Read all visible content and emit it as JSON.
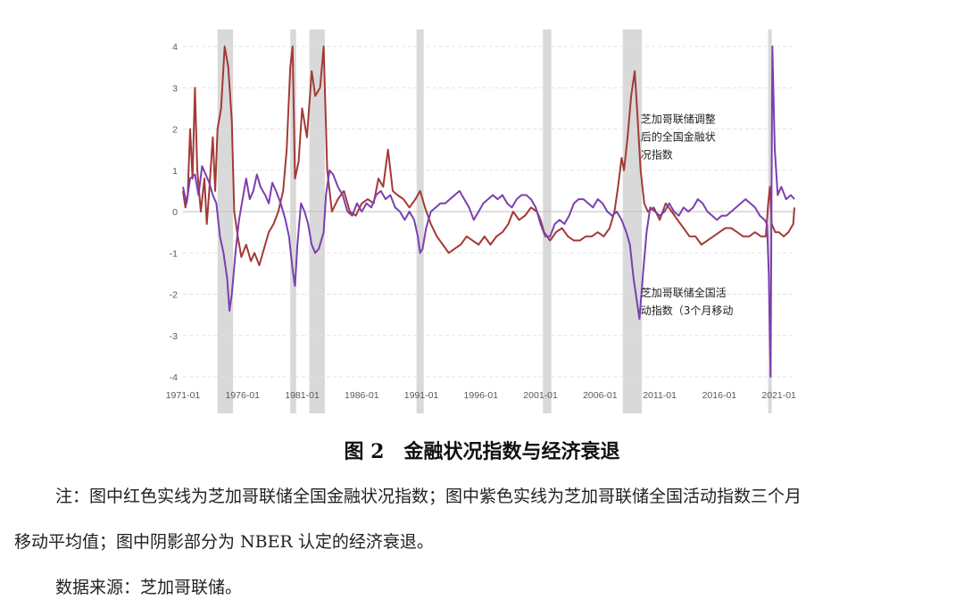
{
  "chart_data": {
    "type": "line",
    "ylim": [
      -4,
      4
    ],
    "yticks": [
      "4",
      "3",
      "2",
      "1",
      "0",
      "-1",
      "-2",
      "-3",
      "-4"
    ],
    "xlim": [
      1971.0,
      2022.3
    ],
    "xticks": [
      {
        "x": 1971.0,
        "label": "1971-01"
      },
      {
        "x": 1976.0,
        "label": "1976-01"
      },
      {
        "x": 1981.0,
        "label": "1981-01"
      },
      {
        "x": 1986.0,
        "label": "1986-01"
      },
      {
        "x": 1991.0,
        "label": "1991-01"
      },
      {
        "x": 1996.0,
        "label": "1996-01"
      },
      {
        "x": 2001.0,
        "label": "2001-01"
      },
      {
        "x": 2006.0,
        "label": "2006-01"
      },
      {
        "x": 2011.0,
        "label": "2011-01"
      },
      {
        "x": 2016.0,
        "label": "2016-01"
      },
      {
        "x": 2021.0,
        "label": "2021-01"
      }
    ],
    "grid": "horizontal-dashed",
    "recessions": [
      [
        1973.9,
        1975.2
      ],
      [
        1980.0,
        1980.5
      ],
      [
        1981.6,
        1982.9
      ],
      [
        1990.6,
        1991.2
      ],
      [
        2001.2,
        2001.9
      ],
      [
        2007.9,
        2009.5
      ],
      [
        2020.1,
        2020.4
      ]
    ],
    "series": [
      {
        "name": "芝加哥联储调整后的全国金融状况指数",
        "color": "#a33a36",
        "points": [
          [
            1971.0,
            0.5
          ],
          [
            1971.2,
            0.1
          ],
          [
            1971.4,
            0.4
          ],
          [
            1971.6,
            2.0
          ],
          [
            1971.8,
            0.8
          ],
          [
            1972.0,
            3.0
          ],
          [
            1972.2,
            1.0
          ],
          [
            1972.5,
            0.0
          ],
          [
            1972.8,
            0.8
          ],
          [
            1973.0,
            -0.3
          ],
          [
            1973.2,
            0.5
          ],
          [
            1973.5,
            1.8
          ],
          [
            1973.7,
            0.5
          ],
          [
            1973.9,
            2.0
          ],
          [
            1974.2,
            2.5
          ],
          [
            1974.5,
            4.0
          ],
          [
            1974.8,
            3.5
          ],
          [
            1975.1,
            2.2
          ],
          [
            1975.3,
            0.0
          ],
          [
            1975.6,
            -0.6
          ],
          [
            1975.9,
            -1.1
          ],
          [
            1976.3,
            -0.8
          ],
          [
            1976.7,
            -1.2
          ],
          [
            1977.0,
            -1.0
          ],
          [
            1977.4,
            -1.3
          ],
          [
            1977.8,
            -0.9
          ],
          [
            1978.2,
            -0.5
          ],
          [
            1978.6,
            -0.3
          ],
          [
            1979.0,
            0.0
          ],
          [
            1979.4,
            0.5
          ],
          [
            1979.7,
            1.5
          ],
          [
            1980.0,
            3.5
          ],
          [
            1980.2,
            4.0
          ],
          [
            1980.4,
            0.8
          ],
          [
            1980.7,
            1.2
          ],
          [
            1981.0,
            2.5
          ],
          [
            1981.4,
            1.8
          ],
          [
            1981.8,
            3.4
          ],
          [
            1982.1,
            2.8
          ],
          [
            1982.5,
            3.0
          ],
          [
            1982.8,
            4.0
          ],
          [
            1983.1,
            1.0
          ],
          [
            1983.5,
            0.0
          ],
          [
            1984.0,
            0.3
          ],
          [
            1984.5,
            0.5
          ],
          [
            1985.0,
            0.0
          ],
          [
            1985.5,
            -0.1
          ],
          [
            1986.0,
            0.2
          ],
          [
            1986.5,
            0.3
          ],
          [
            1987.0,
            0.2
          ],
          [
            1987.4,
            0.8
          ],
          [
            1987.8,
            0.6
          ],
          [
            1988.2,
            1.5
          ],
          [
            1988.6,
            0.5
          ],
          [
            1989.0,
            0.4
          ],
          [
            1989.5,
            0.3
          ],
          [
            1990.0,
            0.1
          ],
          [
            1990.5,
            0.3
          ],
          [
            1990.9,
            0.5
          ],
          [
            1991.3,
            0.1
          ],
          [
            1991.8,
            -0.3
          ],
          [
            1992.3,
            -0.6
          ],
          [
            1992.8,
            -0.8
          ],
          [
            1993.3,
            -1.0
          ],
          [
            1993.8,
            -0.9
          ],
          [
            1994.3,
            -0.8
          ],
          [
            1994.8,
            -0.6
          ],
          [
            1995.3,
            -0.7
          ],
          [
            1995.8,
            -0.8
          ],
          [
            1996.3,
            -0.6
          ],
          [
            1996.8,
            -0.8
          ],
          [
            1997.3,
            -0.6
          ],
          [
            1997.8,
            -0.5
          ],
          [
            1998.3,
            -0.3
          ],
          [
            1998.7,
            0.0
          ],
          [
            1999.2,
            -0.2
          ],
          [
            1999.7,
            -0.1
          ],
          [
            2000.2,
            0.1
          ],
          [
            2000.7,
            0.0
          ],
          [
            2001.0,
            -0.2
          ],
          [
            2001.3,
            -0.5
          ],
          [
            2001.8,
            -0.7
          ],
          [
            2002.3,
            -0.5
          ],
          [
            2002.8,
            -0.4
          ],
          [
            2003.3,
            -0.6
          ],
          [
            2003.8,
            -0.7
          ],
          [
            2004.3,
            -0.7
          ],
          [
            2004.8,
            -0.6
          ],
          [
            2005.3,
            -0.6
          ],
          [
            2005.8,
            -0.5
          ],
          [
            2006.3,
            -0.6
          ],
          [
            2006.8,
            -0.4
          ],
          [
            2007.2,
            0.0
          ],
          [
            2007.5,
            0.6
          ],
          [
            2007.8,
            1.3
          ],
          [
            2008.0,
            1.0
          ],
          [
            2008.3,
            1.8
          ],
          [
            2008.6,
            2.8
          ],
          [
            2008.9,
            3.4
          ],
          [
            2009.1,
            2.5
          ],
          [
            2009.4,
            1.0
          ],
          [
            2009.7,
            0.2
          ],
          [
            2010.0,
            0.0
          ],
          [
            2010.5,
            0.1
          ],
          [
            2011.0,
            -0.2
          ],
          [
            2011.5,
            0.2
          ],
          [
            2012.0,
            0.0
          ],
          [
            2012.5,
            -0.2
          ],
          [
            2013.0,
            -0.4
          ],
          [
            2013.5,
            -0.6
          ],
          [
            2014.0,
            -0.6
          ],
          [
            2014.5,
            -0.8
          ],
          [
            2015.0,
            -0.7
          ],
          [
            2015.5,
            -0.6
          ],
          [
            2016.0,
            -0.5
          ],
          [
            2016.5,
            -0.4
          ],
          [
            2017.0,
            -0.4
          ],
          [
            2017.5,
            -0.5
          ],
          [
            2018.0,
            -0.6
          ],
          [
            2018.5,
            -0.6
          ],
          [
            2019.0,
            -0.5
          ],
          [
            2019.5,
            -0.6
          ],
          [
            2019.9,
            -0.6
          ],
          [
            2020.1,
            0.2
          ],
          [
            2020.25,
            0.6
          ],
          [
            2020.4,
            -0.3
          ],
          [
            2020.7,
            -0.5
          ],
          [
            2021.0,
            -0.5
          ],
          [
            2021.4,
            -0.6
          ],
          [
            2021.8,
            -0.5
          ],
          [
            2022.2,
            -0.3
          ],
          [
            2022.3,
            0.1
          ]
        ]
      },
      {
        "name": "芝加哥联储全国活动指数（3个月移动",
        "color": "#7b3fb0",
        "points": [
          [
            1971.0,
            0.6
          ],
          [
            1971.3,
            0.2
          ],
          [
            1971.6,
            0.8
          ],
          [
            1972.0,
            0.9
          ],
          [
            1972.3,
            0.4
          ],
          [
            1972.6,
            1.1
          ],
          [
            1972.9,
            0.9
          ],
          [
            1973.2,
            0.7
          ],
          [
            1973.5,
            0.4
          ],
          [
            1973.8,
            0.2
          ],
          [
            1974.1,
            -0.6
          ],
          [
            1974.4,
            -1.0
          ],
          [
            1974.7,
            -1.6
          ],
          [
            1974.9,
            -2.4
          ],
          [
            1975.1,
            -2.0
          ],
          [
            1975.4,
            -1.0
          ],
          [
            1975.7,
            -0.2
          ],
          [
            1976.0,
            0.3
          ],
          [
            1976.3,
            0.8
          ],
          [
            1976.6,
            0.3
          ],
          [
            1976.9,
            0.5
          ],
          [
            1977.2,
            0.9
          ],
          [
            1977.5,
            0.6
          ],
          [
            1977.9,
            0.4
          ],
          [
            1978.2,
            0.2
          ],
          [
            1978.5,
            0.7
          ],
          [
            1978.8,
            0.5
          ],
          [
            1979.2,
            0.2
          ],
          [
            1979.6,
            -0.2
          ],
          [
            1979.9,
            -0.6
          ],
          [
            1980.2,
            -1.4
          ],
          [
            1980.4,
            -1.8
          ],
          [
            1980.6,
            -0.8
          ],
          [
            1980.9,
            0.2
          ],
          [
            1981.2,
            0.0
          ],
          [
            1981.5,
            -0.3
          ],
          [
            1981.8,
            -0.8
          ],
          [
            1982.1,
            -1.0
          ],
          [
            1982.4,
            -0.9
          ],
          [
            1982.8,
            -0.5
          ],
          [
            1983.0,
            0.4
          ],
          [
            1983.3,
            1.0
          ],
          [
            1983.6,
            0.9
          ],
          [
            1984.0,
            0.6
          ],
          [
            1984.4,
            0.4
          ],
          [
            1984.8,
            0.0
          ],
          [
            1985.2,
            -0.1
          ],
          [
            1985.6,
            0.2
          ],
          [
            1986.0,
            0.0
          ],
          [
            1986.4,
            0.2
          ],
          [
            1986.8,
            0.1
          ],
          [
            1987.2,
            0.4
          ],
          [
            1987.6,
            0.5
          ],
          [
            1988.0,
            0.3
          ],
          [
            1988.4,
            0.4
          ],
          [
            1988.8,
            0.1
          ],
          [
            1989.2,
            0.0
          ],
          [
            1989.6,
            -0.2
          ],
          [
            1990.0,
            0.0
          ],
          [
            1990.4,
            -0.2
          ],
          [
            1990.7,
            -0.6
          ],
          [
            1990.9,
            -1.0
          ],
          [
            1991.1,
            -0.9
          ],
          [
            1991.4,
            -0.4
          ],
          [
            1991.8,
            0.0
          ],
          [
            1992.2,
            0.1
          ],
          [
            1992.6,
            0.2
          ],
          [
            1993.0,
            0.2
          ],
          [
            1993.4,
            0.3
          ],
          [
            1993.8,
            0.4
          ],
          [
            1994.2,
            0.5
          ],
          [
            1994.6,
            0.3
          ],
          [
            1995.0,
            0.1
          ],
          [
            1995.4,
            -0.2
          ],
          [
            1995.8,
            0.0
          ],
          [
            1996.2,
            0.2
          ],
          [
            1996.6,
            0.3
          ],
          [
            1997.0,
            0.4
          ],
          [
            1997.4,
            0.3
          ],
          [
            1997.8,
            0.4
          ],
          [
            1998.2,
            0.2
          ],
          [
            1998.6,
            0.1
          ],
          [
            1999.0,
            0.3
          ],
          [
            1999.4,
            0.4
          ],
          [
            1999.8,
            0.4
          ],
          [
            2000.2,
            0.3
          ],
          [
            2000.6,
            0.1
          ],
          [
            2001.0,
            -0.3
          ],
          [
            2001.4,
            -0.6
          ],
          [
            2001.8,
            -0.6
          ],
          [
            2002.2,
            -0.3
          ],
          [
            2002.6,
            -0.2
          ],
          [
            2003.0,
            -0.3
          ],
          [
            2003.4,
            -0.1
          ],
          [
            2003.8,
            0.2
          ],
          [
            2004.2,
            0.3
          ],
          [
            2004.6,
            0.3
          ],
          [
            2005.0,
            0.2
          ],
          [
            2005.4,
            0.1
          ],
          [
            2005.8,
            0.3
          ],
          [
            2006.2,
            0.2
          ],
          [
            2006.6,
            0.0
          ],
          [
            2007.0,
            -0.1
          ],
          [
            2007.4,
            0.0
          ],
          [
            2007.8,
            -0.2
          ],
          [
            2008.2,
            -0.5
          ],
          [
            2008.5,
            -0.8
          ],
          [
            2008.8,
            -1.6
          ],
          [
            2009.1,
            -2.2
          ],
          [
            2009.3,
            -2.6
          ],
          [
            2009.6,
            -1.5
          ],
          [
            2009.9,
            -0.5
          ],
          [
            2010.2,
            0.1
          ],
          [
            2010.6,
            0.0
          ],
          [
            2011.0,
            -0.1
          ],
          [
            2011.4,
            0.0
          ],
          [
            2011.8,
            0.2
          ],
          [
            2012.2,
            0.0
          ],
          [
            2012.6,
            -0.1
          ],
          [
            2013.0,
            0.1
          ],
          [
            2013.4,
            0.0
          ],
          [
            2013.8,
            0.1
          ],
          [
            2014.2,
            0.3
          ],
          [
            2014.6,
            0.2
          ],
          [
            2015.0,
            0.0
          ],
          [
            2015.4,
            -0.1
          ],
          [
            2015.8,
            -0.2
          ],
          [
            2016.2,
            -0.1
          ],
          [
            2016.6,
            -0.1
          ],
          [
            2017.0,
            0.0
          ],
          [
            2017.4,
            0.1
          ],
          [
            2017.8,
            0.2
          ],
          [
            2018.2,
            0.3
          ],
          [
            2018.6,
            0.2
          ],
          [
            2019.0,
            0.1
          ],
          [
            2019.4,
            -0.1
          ],
          [
            2019.8,
            -0.2
          ],
          [
            2020.0,
            -0.3
          ],
          [
            2020.15,
            -1.5
          ],
          [
            2020.3,
            -4.0
          ],
          [
            2020.45,
            4.0
          ],
          [
            2020.65,
            1.5
          ],
          [
            2020.9,
            0.4
          ],
          [
            2021.2,
            0.6
          ],
          [
            2021.6,
            0.3
          ],
          [
            2022.0,
            0.4
          ],
          [
            2022.3,
            0.3
          ]
        ]
      }
    ],
    "annotations": [
      {
        "series": 0,
        "lines": [
          "芝加哥联储调整",
          "后的全国金融状",
          "况指数"
        ]
      },
      {
        "series": 1,
        "lines": [
          "芝加哥联储全国活",
          "动指数（3个月移动"
        ]
      }
    ]
  },
  "caption": "图 2　金融状况指数与经济衰退",
  "note": {
    "line1": "注：图中红色实线为芝加哥联储全国金融状况指数；图中紫色实线为芝加哥联储全国活动指数三个月",
    "line2": "移动平均值；图中阴影部分为 NBER 认定的经济衰退。",
    "source": "数据来源：芝加哥联储。"
  }
}
